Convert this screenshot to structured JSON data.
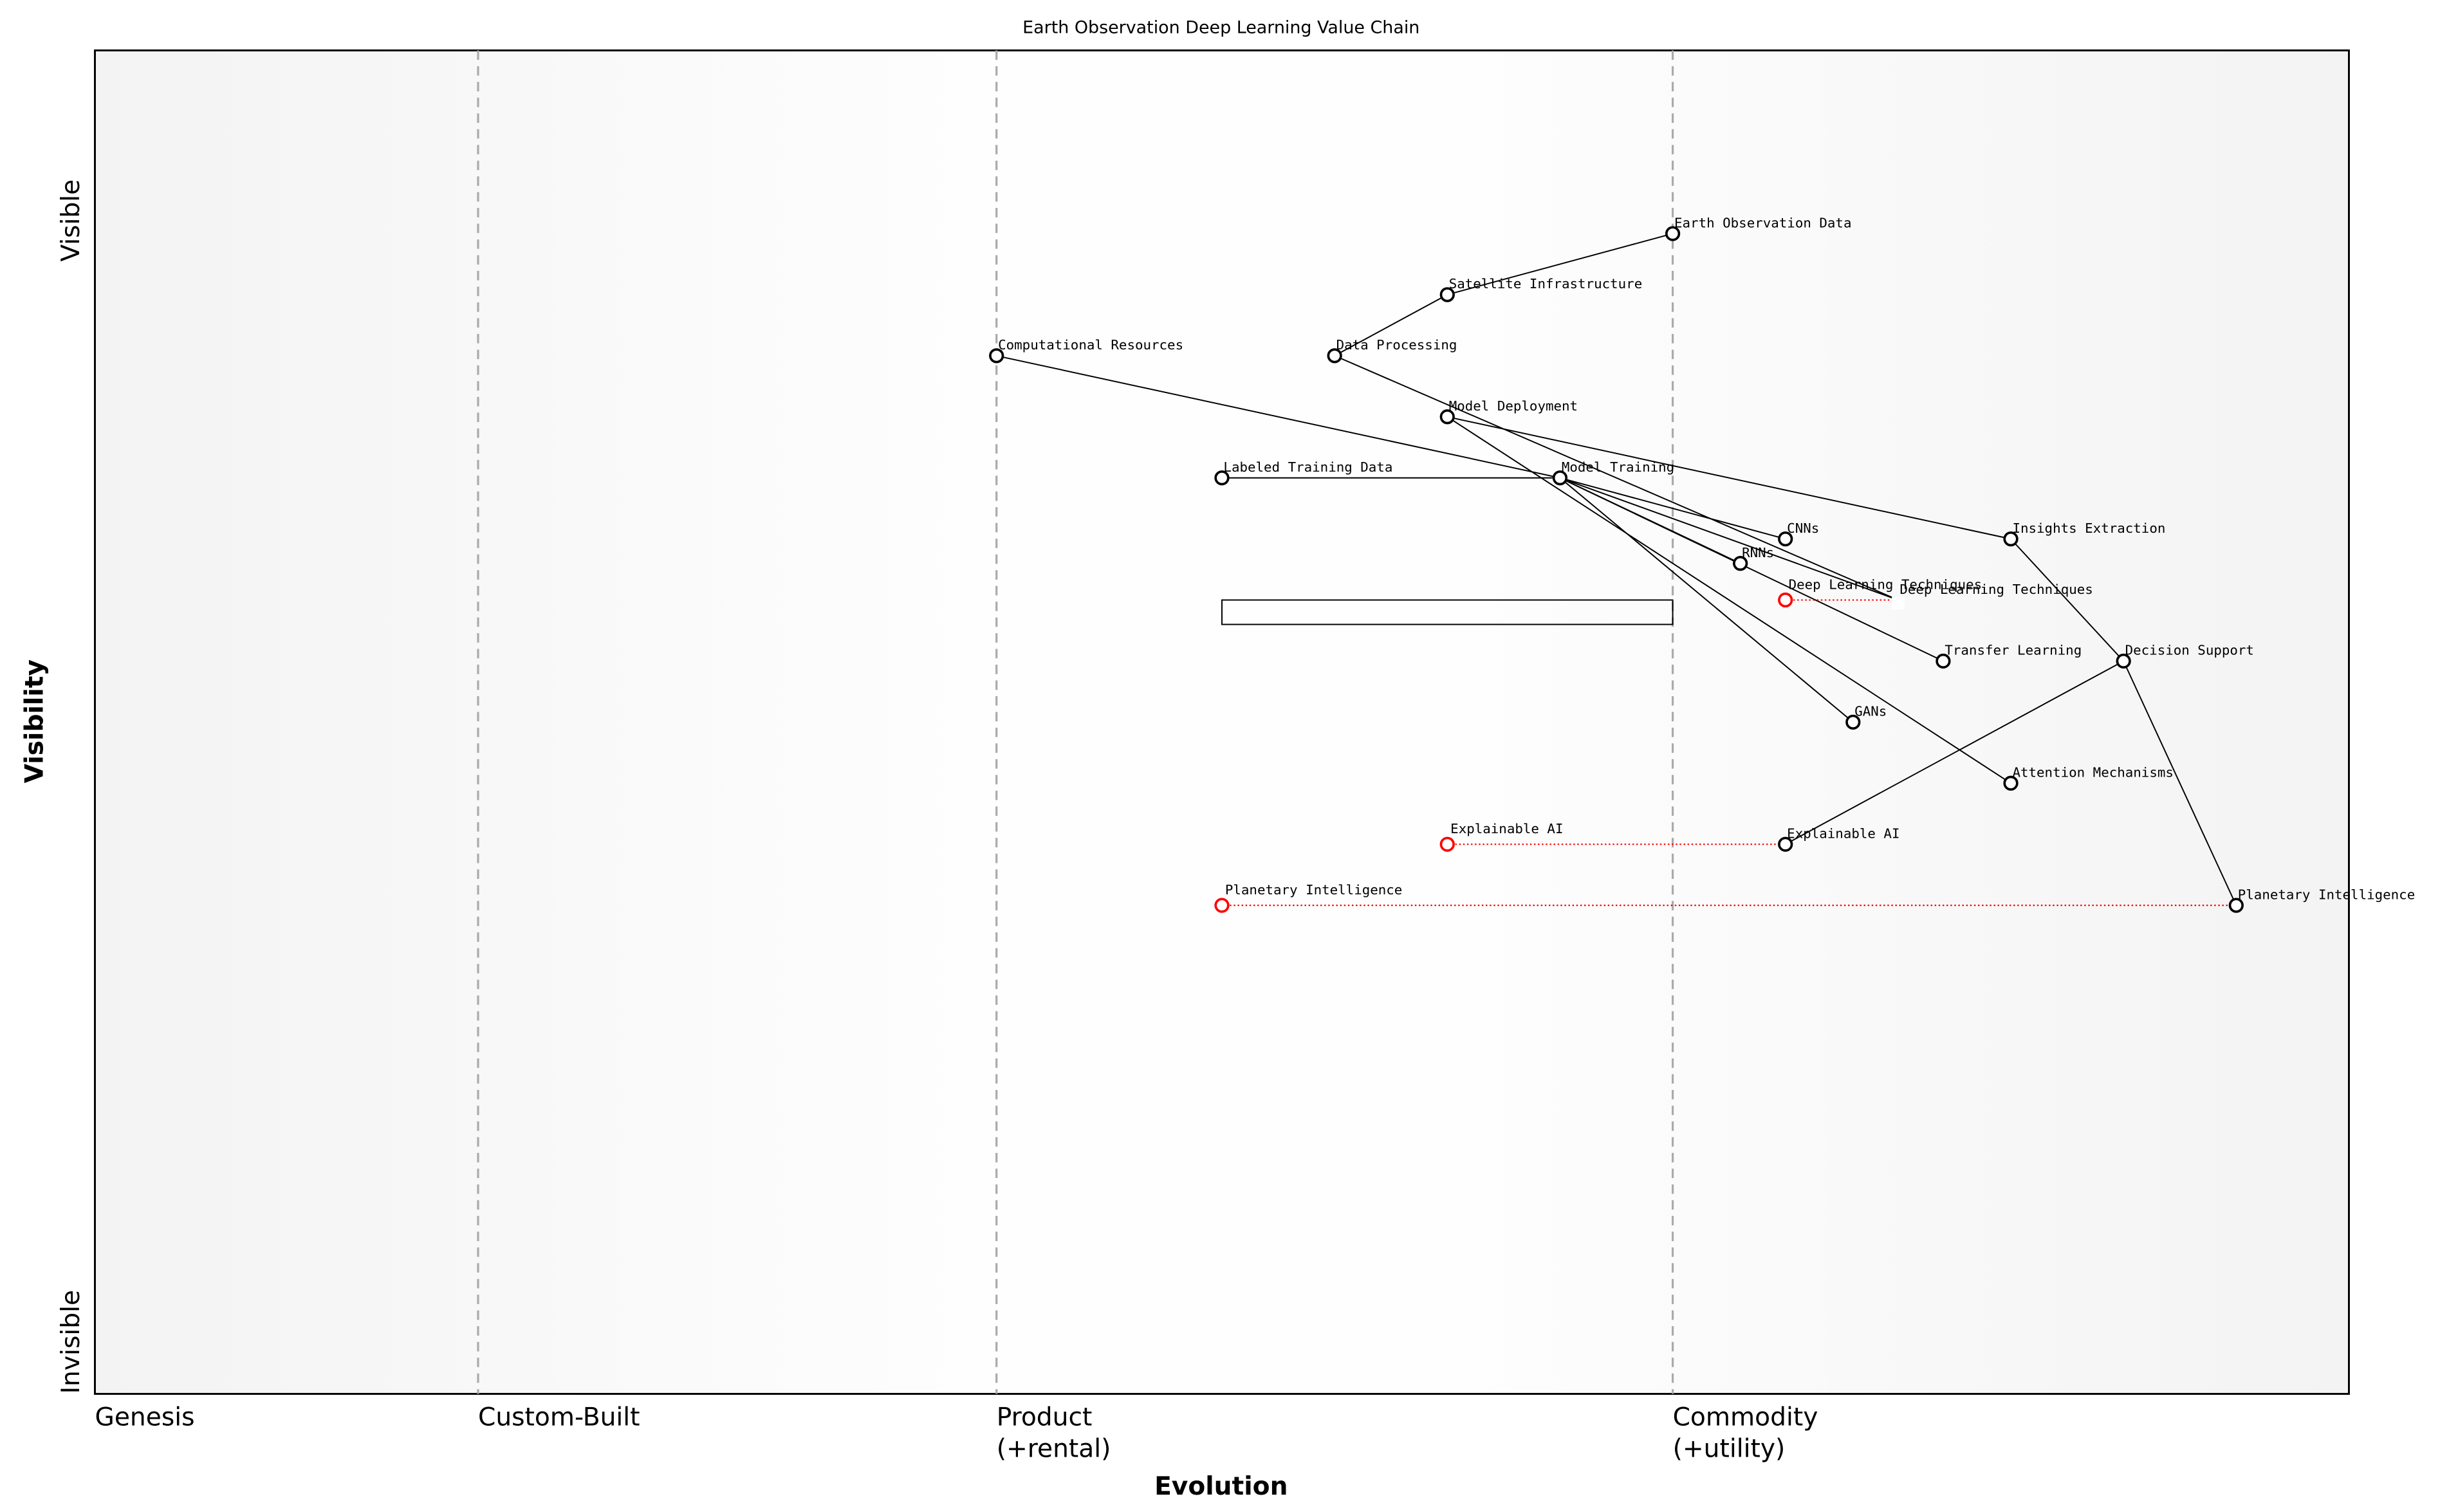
{
  "title": "Earth Observation Deep Learning Value Chain",
  "x_axis": {
    "label": "Evolution",
    "stages": [
      {
        "label": "Genesis",
        "sub": "",
        "evo": 0.0
      },
      {
        "label": "Custom-Built",
        "sub": "",
        "evo": 0.17
      },
      {
        "label": "Product",
        "sub": "(+rental)",
        "evo": 0.4
      },
      {
        "label": "Commodity",
        "sub": "(+utility)",
        "evo": 0.7
      }
    ]
  },
  "y_axis": {
    "label": "Visibility",
    "top": "Visible",
    "bottom": "Invisible",
    "ylim": [
      0,
      1.1
    ]
  },
  "colors": {
    "node": "#000000",
    "evolving": "#ff0000",
    "divider": "#aaaaaa"
  },
  "nodes": [
    {
      "id": "eod",
      "label": "Earth Observation Data",
      "evo": 0.7,
      "vis": 0.95
    },
    {
      "id": "sat",
      "label": "Satellite Infrastructure",
      "evo": 0.6,
      "vis": 0.9
    },
    {
      "id": "comp",
      "label": "Computational Resources",
      "evo": 0.4,
      "vis": 0.85
    },
    {
      "id": "dp",
      "label": "Data Processing",
      "evo": 0.55,
      "vis": 0.85
    },
    {
      "id": "md",
      "label": "Model Deployment",
      "evo": 0.6,
      "vis": 0.8
    },
    {
      "id": "ltd",
      "label": "Labeled Training Data",
      "evo": 0.5,
      "vis": 0.75
    },
    {
      "id": "mt",
      "label": "Model Training",
      "evo": 0.65,
      "vis": 0.75
    },
    {
      "id": "cnn",
      "label": "CNNs",
      "evo": 0.75,
      "vis": 0.7
    },
    {
      "id": "rnn",
      "label": "RNNs",
      "evo": 0.73,
      "vis": 0.68
    },
    {
      "id": "ie",
      "label": "Insights Extraction",
      "evo": 0.85,
      "vis": 0.7
    },
    {
      "id": "dlt",
      "label": "Deep Learning Techniques",
      "evo": 0.8,
      "vis": 0.65,
      "hidden": true
    },
    {
      "id": "tl",
      "label": "Transfer Learning",
      "evo": 0.82,
      "vis": 0.6
    },
    {
      "id": "ds",
      "label": "Decision Support",
      "evo": 0.9,
      "vis": 0.6
    },
    {
      "id": "gan",
      "label": "GANs",
      "evo": 0.78,
      "vis": 0.55
    },
    {
      "id": "am",
      "label": "Attention Mechanisms",
      "evo": 0.85,
      "vis": 0.5
    },
    {
      "id": "xai",
      "label": "Explainable AI",
      "evo": 0.75,
      "vis": 0.45
    },
    {
      "id": "pi",
      "label": "Planetary Intelligence",
      "evo": 0.95,
      "vis": 0.4
    }
  ],
  "evolving": [
    {
      "label": "Deep Learning Techniques",
      "from_evo": 0.75,
      "to": "dlt"
    },
    {
      "label": "Explainable AI",
      "from_evo": 0.6,
      "to": "xai"
    },
    {
      "label": "Planetary Intelligence",
      "from_evo": 0.5,
      "to": "pi"
    }
  ],
  "links": [
    [
      "sat",
      "eod"
    ],
    [
      "sat",
      "dp"
    ],
    [
      "dp",
      "dlt"
    ],
    [
      "comp",
      "mt"
    ],
    [
      "ltd",
      "mt"
    ],
    [
      "md",
      "ie"
    ],
    [
      "md",
      "am"
    ],
    [
      "mt",
      "cnn"
    ],
    [
      "mt",
      "rnn"
    ],
    [
      "mt",
      "tl"
    ],
    [
      "mt",
      "gan"
    ],
    [
      "mt",
      "dlt"
    ],
    [
      "ie",
      "ds"
    ],
    [
      "ds",
      "pi"
    ],
    [
      "xai",
      "ds"
    ]
  ],
  "box": {
    "evo": [
      0.5,
      0.7
    ],
    "vis": [
      0.63,
      0.65
    ]
  }
}
